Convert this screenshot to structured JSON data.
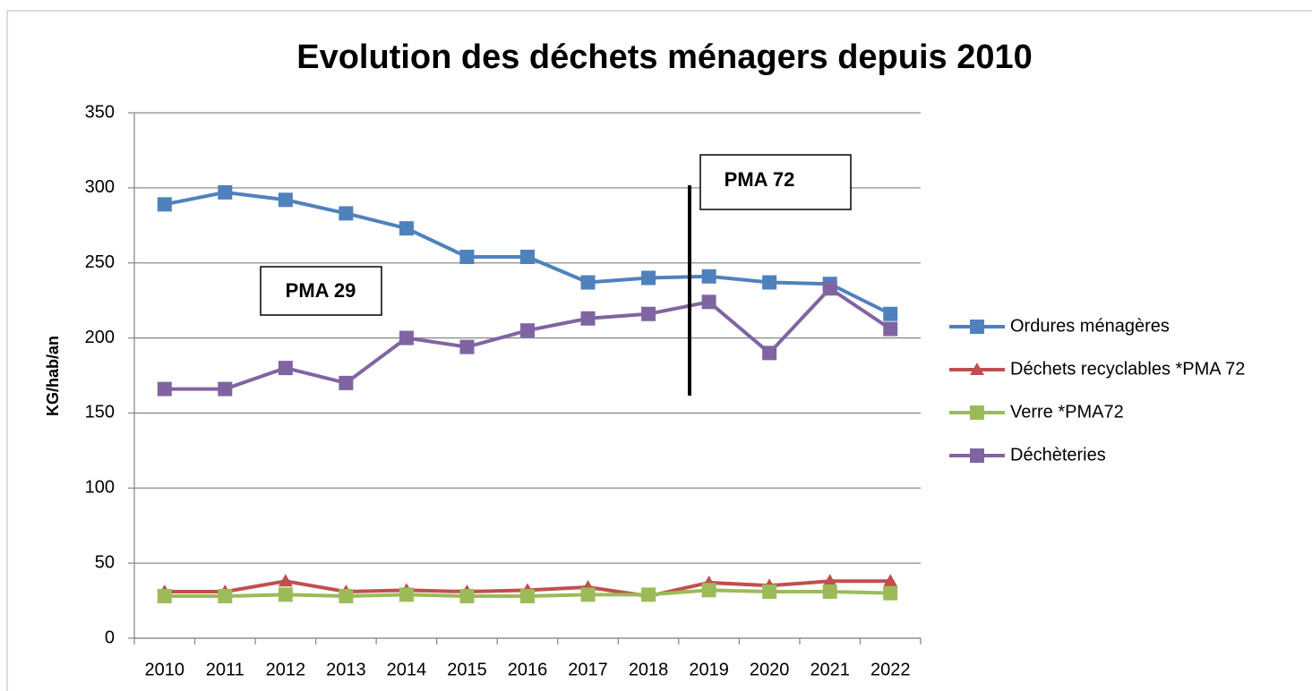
{
  "chart_data": {
    "type": "line",
    "title": "Evolution des déchets ménagers depuis 2010",
    "y_label": "KG/hab/an",
    "categories": [
      "2010",
      "2011",
      "2012",
      "2013",
      "2014",
      "2015",
      "2016",
      "2017",
      "2018",
      "2019",
      "2020",
      "2021",
      "2022"
    ],
    "series": [
      {
        "name": "Ordures ménagères",
        "color": "#4f81bd",
        "marker": "square",
        "values": [
          289,
          297,
          292,
          283,
          273,
          254,
          254,
          237,
          240,
          241,
          237,
          236,
          216
        ]
      },
      {
        "name": "Déchets recyclables *PMA 72",
        "color": "#c0504d",
        "marker": "triangle",
        "values": [
          31,
          31,
          38,
          31,
          32,
          31,
          32,
          34,
          28,
          37,
          35,
          38,
          38
        ]
      },
      {
        "name": "Verre *PMA72",
        "color": "#9bbb59",
        "marker": "square",
        "values": [
          28,
          28,
          29,
          28,
          29,
          28,
          28,
          29,
          29,
          32,
          31,
          31,
          30
        ]
      },
      {
        "name": "Déchèteries",
        "color": "#8064a2",
        "marker": "square",
        "values": [
          166,
          166,
          180,
          170,
          200,
          194,
          205,
          213,
          216,
          224,
          190,
          233,
          206
        ]
      }
    ],
    "annotations": [
      "PMA 29",
      "PMA 72"
    ],
    "ylim": [
      0,
      350
    ],
    "yticks": [
      0,
      50,
      100,
      150,
      200,
      250,
      300,
      350
    ],
    "grid": true,
    "legend": "right"
  }
}
